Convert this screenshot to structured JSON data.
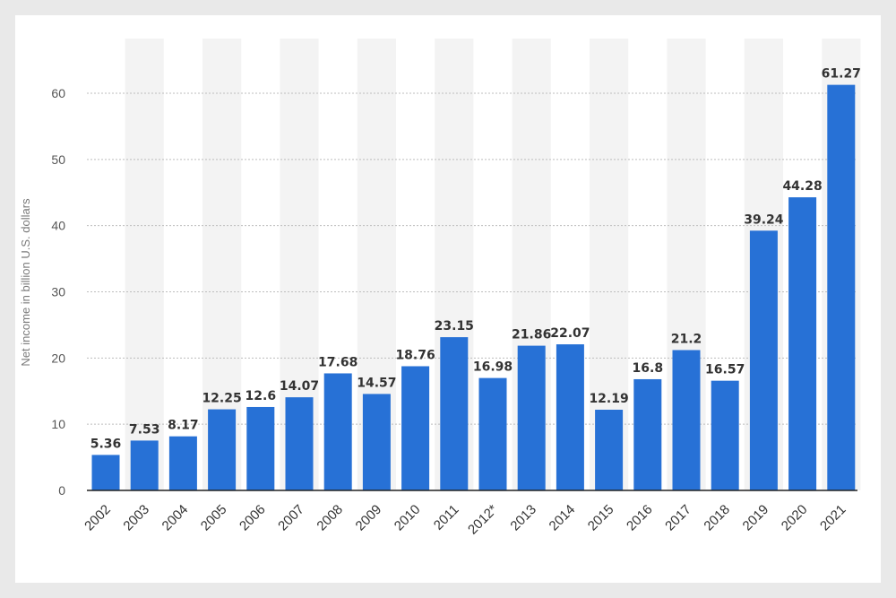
{
  "chart_data": {
    "type": "bar",
    "ylabel": "Net income in billion U.S. dollars",
    "xlabel": "",
    "ylim": [
      0,
      65
    ],
    "yticks": [
      0,
      10,
      20,
      30,
      40,
      50,
      60
    ],
    "grid": true,
    "categories": [
      "2002",
      "2003",
      "2004",
      "2005",
      "2006",
      "2007",
      "2008",
      "2009",
      "2010",
      "2011",
      "2012*",
      "2013",
      "2014",
      "2015",
      "2016",
      "2017",
      "2018",
      "2019",
      "2020",
      "2021"
    ],
    "values": [
      5.36,
      7.53,
      8.17,
      12.25,
      12.6,
      14.07,
      17.68,
      14.57,
      18.76,
      23.15,
      16.98,
      21.86,
      22.07,
      12.19,
      16.8,
      21.2,
      16.57,
      39.24,
      44.28,
      61.27
    ],
    "data_labels": [
      "5.36",
      "7.53",
      "8.17",
      "12.25",
      "12.6",
      "14.07",
      "17.68",
      "14.57",
      "18.76",
      "23.15",
      "16.98",
      "21.86",
      "22.07",
      "12.19",
      "16.8",
      "21.2",
      "16.57",
      "39.24",
      "44.28",
      "61.27"
    ],
    "bar_color": "#2771d6",
    "band_color": "#f3f3f3"
  }
}
